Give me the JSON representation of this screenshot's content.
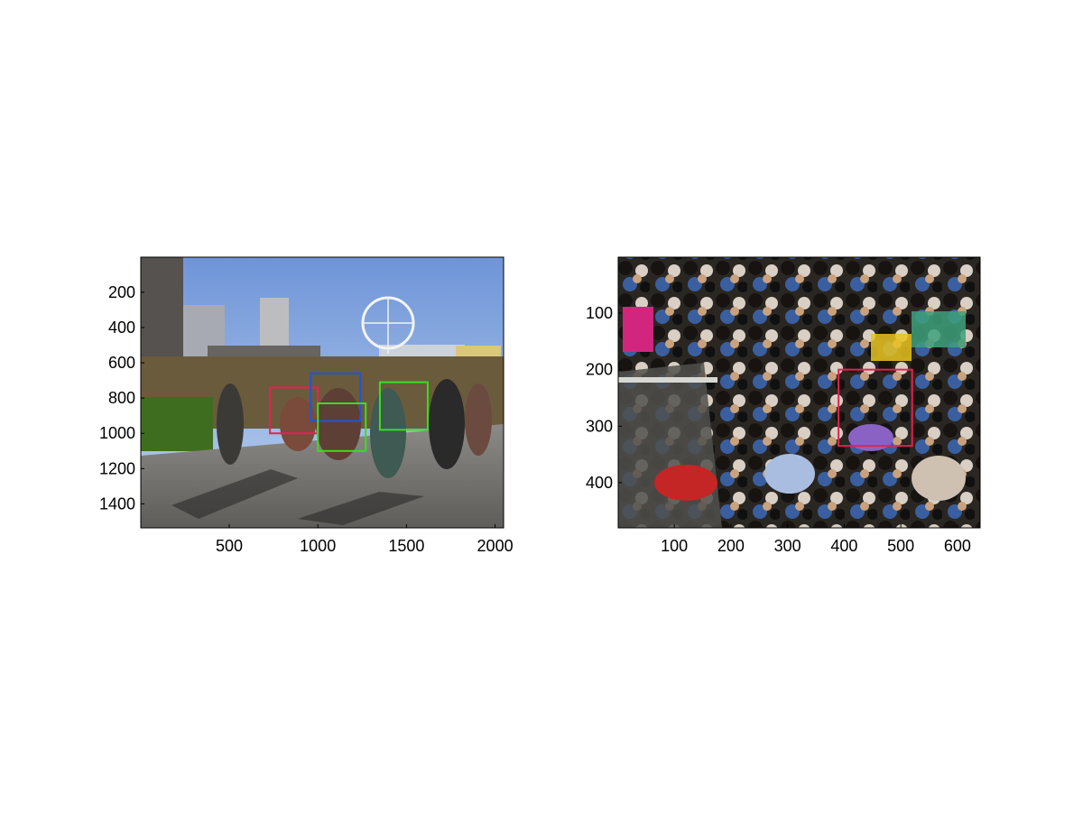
{
  "figure": {
    "background": "#ffffff",
    "panels": [
      {
        "id": "left",
        "image_description": "outdoor scene, people running on a terrace, river-side skyline with a Ferris wheel under blue sky",
        "x_ticks": [
          "500",
          "1000",
          "1500",
          "2000"
        ],
        "y_ticks": [
          "200",
          "400",
          "600",
          "800",
          "1000",
          "1200",
          "1400"
        ],
        "xlim": [
          1,
          2048
        ],
        "ylim": [
          1,
          1536
        ],
        "boxes": [
          {
            "color": "#e8204f",
            "x": [
              730,
              1000
            ],
            "y": [
              740,
              1000
            ]
          },
          {
            "color": "#1a56e0",
            "x": [
              960,
              1240
            ],
            "y": [
              660,
              930
            ]
          },
          {
            "color": "#39e01a",
            "x": [
              1000,
              1270
            ],
            "y": [
              830,
              1100
            ]
          },
          {
            "color": "#39e01a",
            "x": [
              1350,
              1620
            ],
            "y": [
              710,
              980
            ]
          }
        ]
      },
      {
        "id": "right",
        "image_description": "top-down view of a dense crowd on an escalator and walkway",
        "x_ticks": [
          "100",
          "200",
          "300",
          "400",
          "500",
          "600"
        ],
        "y_ticks": [
          "100",
          "200",
          "300",
          "400"
        ],
        "xlim": [
          1,
          640
        ],
        "ylim": [
          1,
          480
        ],
        "boxes": [
          {
            "color": "#e8204f",
            "x": [
              390,
              520
            ],
            "y": [
              200,
              335
            ]
          }
        ]
      }
    ]
  }
}
